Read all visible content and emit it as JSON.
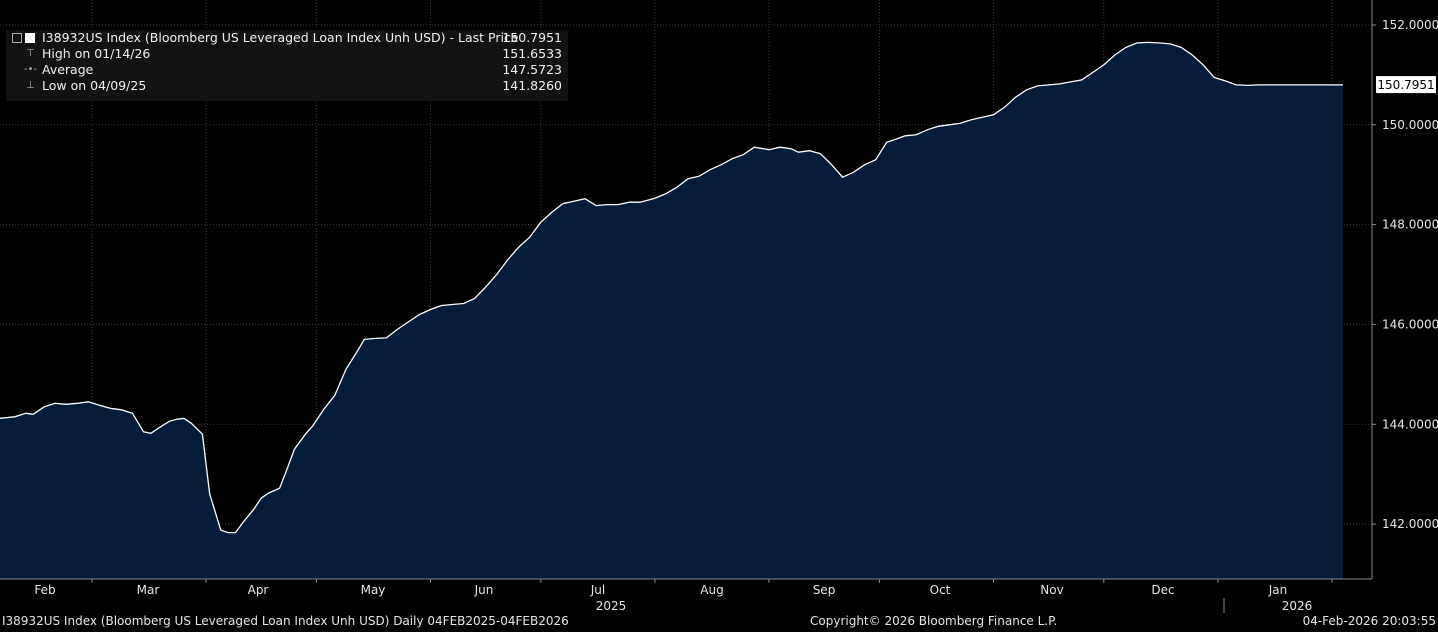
{
  "colors": {
    "background": "#000000",
    "area": "#041c3a",
    "line": "#ffffff",
    "grid": "#3a3a3a",
    "axis_text": "#e6e6e6",
    "last_price_tag": "#ffffff"
  },
  "legend": {
    "title": "I38932US Index (Bloomberg US Leveraged Loan Index Unh USD) - Last Price",
    "title_value": "150.7951",
    "rows": [
      {
        "label": "High on 01/14/26",
        "value": "151.6533",
        "icon": "high-marker-icon"
      },
      {
        "label": "Average",
        "value": "147.5723",
        "icon": "average-marker-icon"
      },
      {
        "label": "Low on 04/09/25",
        "value": "141.8260",
        "icon": "low-marker-icon"
      }
    ]
  },
  "footer": {
    "left": "I38932US Index (Bloomberg US Leveraged Loan Index Unh USD) Daily 04FEB2025-04FEB2026",
    "center": "Copyright© 2026 Bloomberg Finance L.P.",
    "right": "04-Feb-2026 20:03:55"
  },
  "chart_data": {
    "type": "area",
    "ylim": [
      140.9,
      152.5
    ],
    "yticks": [
      142,
      144,
      146,
      148,
      150,
      152
    ],
    "ytick_labels": [
      "142.0000",
      "144.0000",
      "146.0000",
      "148.0000",
      "150.0000",
      "152.0000"
    ],
    "last_price_label": "150.7951",
    "last_price": 150.7951,
    "x_months": [
      "Feb",
      "Mar",
      "Apr",
      "May",
      "Jun",
      "Jul",
      "Aug",
      "Sep",
      "Oct",
      "Nov",
      "Dec",
      "Jan",
      "Jan"
    ],
    "x_years": [
      "2025",
      "2026"
    ],
    "x": [
      "2025-02-04",
      "2025-02-08",
      "2025-02-11",
      "2025-02-13",
      "2025-02-16",
      "2025-02-19",
      "2025-02-22",
      "2025-02-25",
      "2025-02-28",
      "2025-03-03",
      "2025-03-06",
      "2025-03-09",
      "2025-03-12",
      "2025-03-15",
      "2025-03-17",
      "2025-03-19",
      "2025-03-22",
      "2025-03-24",
      "2025-03-26",
      "2025-03-28",
      "2025-03-31",
      "2025-04-02",
      "2025-04-05",
      "2025-04-07",
      "2025-04-09",
      "2025-04-11",
      "2025-04-14",
      "2025-04-16",
      "2025-04-18",
      "2025-04-21",
      "2025-04-23",
      "2025-04-25",
      "2025-04-28",
      "2025-04-30",
      "2025-05-03",
      "2025-05-06",
      "2025-05-09",
      "2025-05-12",
      "2025-05-14",
      "2025-05-17",
      "2025-05-20",
      "2025-05-23",
      "2025-05-26",
      "2025-05-29",
      "2025-06-01",
      "2025-06-04",
      "2025-06-07",
      "2025-06-10",
      "2025-06-13",
      "2025-06-16",
      "2025-06-19",
      "2025-06-22",
      "2025-06-25",
      "2025-06-28",
      "2025-07-01",
      "2025-07-04",
      "2025-07-07",
      "2025-07-10",
      "2025-07-13",
      "2025-07-16",
      "2025-07-19",
      "2025-07-22",
      "2025-07-25",
      "2025-07-28",
      "2025-08-01",
      "2025-08-04",
      "2025-08-07",
      "2025-08-10",
      "2025-08-13",
      "2025-08-16",
      "2025-08-19",
      "2025-08-22",
      "2025-08-25",
      "2025-08-28",
      "2025-09-01",
      "2025-09-04",
      "2025-09-07",
      "2025-09-09",
      "2025-09-12",
      "2025-09-15",
      "2025-09-18",
      "2025-09-21",
      "2025-09-24",
      "2025-09-27",
      "2025-09-30",
      "2025-10-03",
      "2025-10-05",
      "2025-10-08",
      "2025-10-11",
      "2025-10-14",
      "2025-10-17",
      "2025-10-20",
      "2025-10-23",
      "2025-10-26",
      "2025-10-29",
      "2025-11-01",
      "2025-11-04",
      "2025-11-07",
      "2025-11-10",
      "2025-11-13",
      "2025-11-16",
      "2025-11-19",
      "2025-11-22",
      "2025-11-25",
      "2025-11-28",
      "2025-12-01",
      "2025-12-04",
      "2025-12-07",
      "2025-12-10",
      "2025-12-13",
      "2025-12-16",
      "2025-12-19",
      "2025-12-22",
      "2025-12-25",
      "2025-12-28",
      "2025-12-31",
      "2026-01-03",
      "2026-01-06",
      "2026-01-09",
      "2026-01-12",
      "2026-01-14",
      "2026-01-17",
      "2026-01-20",
      "2026-01-23",
      "2026-01-26",
      "2026-01-29",
      "2026-02-01",
      "2026-02-04"
    ],
    "values": [
      144.12,
      144.15,
      144.22,
      144.2,
      144.35,
      144.42,
      144.4,
      144.42,
      144.45,
      144.38,
      144.32,
      144.29,
      144.22,
      143.85,
      143.82,
      143.92,
      144.06,
      144.1,
      144.12,
      144.02,
      143.8,
      142.6,
      141.88,
      141.83,
      141.83,
      142.03,
      142.3,
      142.52,
      142.62,
      142.72,
      143.1,
      143.5,
      143.8,
      143.97,
      144.3,
      144.58,
      145.1,
      145.45,
      145.7,
      145.72,
      145.73,
      145.9,
      146.05,
      146.2,
      146.3,
      146.38,
      146.4,
      146.42,
      146.52,
      146.75,
      147.0,
      147.3,
      147.55,
      147.75,
      148.05,
      148.25,
      148.42,
      148.47,
      148.52,
      148.38,
      148.4,
      148.4,
      148.45,
      148.45,
      148.53,
      148.62,
      148.75,
      148.92,
      148.97,
      149.1,
      149.2,
      149.32,
      149.4,
      149.55,
      149.5,
      149.55,
      149.52,
      149.45,
      149.48,
      149.42,
      149.2,
      148.95,
      149.05,
      149.2,
      149.3,
      149.65,
      149.7,
      149.78,
      149.8,
      149.9,
      149.97,
      150.0,
      150.03,
      150.1,
      150.15,
      150.2,
      150.35,
      150.55,
      150.7,
      150.78,
      150.8,
      150.82,
      150.86,
      150.9,
      151.05,
      151.2,
      151.4,
      151.55,
      151.64,
      151.65,
      151.64,
      151.62,
      151.55,
      151.4,
      151.2,
      150.95,
      150.88,
      150.8,
      150.79,
      150.8,
      150.8,
      150.8,
      150.8,
      150.8,
      150.8,
      150.8,
      150.8,
      150.8
    ]
  }
}
